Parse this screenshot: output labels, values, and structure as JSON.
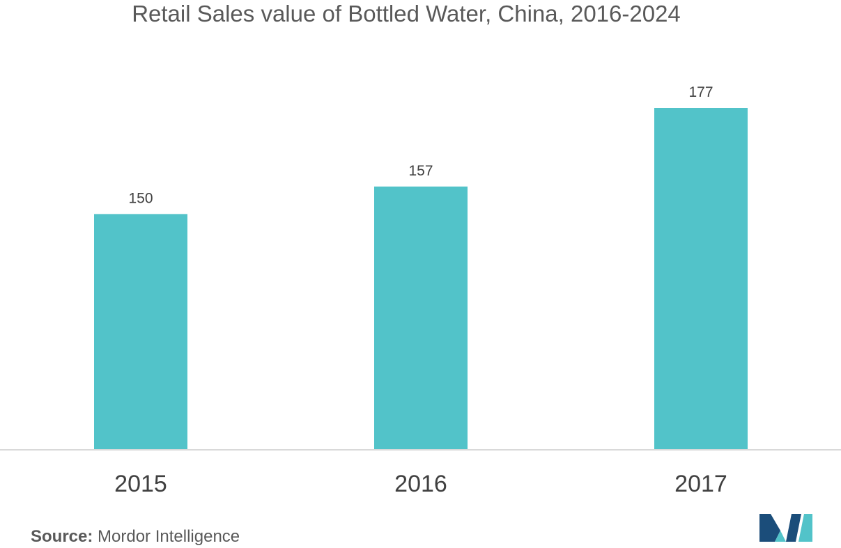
{
  "chart_data": {
    "type": "bar",
    "title": "Retail Sales value of Bottled Water, China, 2016-2024",
    "categories": [
      "2015",
      "2016",
      "2017"
    ],
    "values": [
      150,
      157,
      177
    ],
    "data_labels": [
      "150",
      "157",
      "177"
    ],
    "xlabel": "",
    "ylabel": "",
    "ylim": [
      90,
      180
    ],
    "grid": false,
    "legend": "none",
    "bar_color": "#52c3c9",
    "axis_color": "#d9d9d9"
  },
  "source": {
    "label": "Source:",
    "text": "Mordor Intelligence"
  },
  "logo": {
    "icon": "mordor-intelligence-logo-icon",
    "colors": [
      "#1b4d7a",
      "#52c3c9"
    ]
  }
}
